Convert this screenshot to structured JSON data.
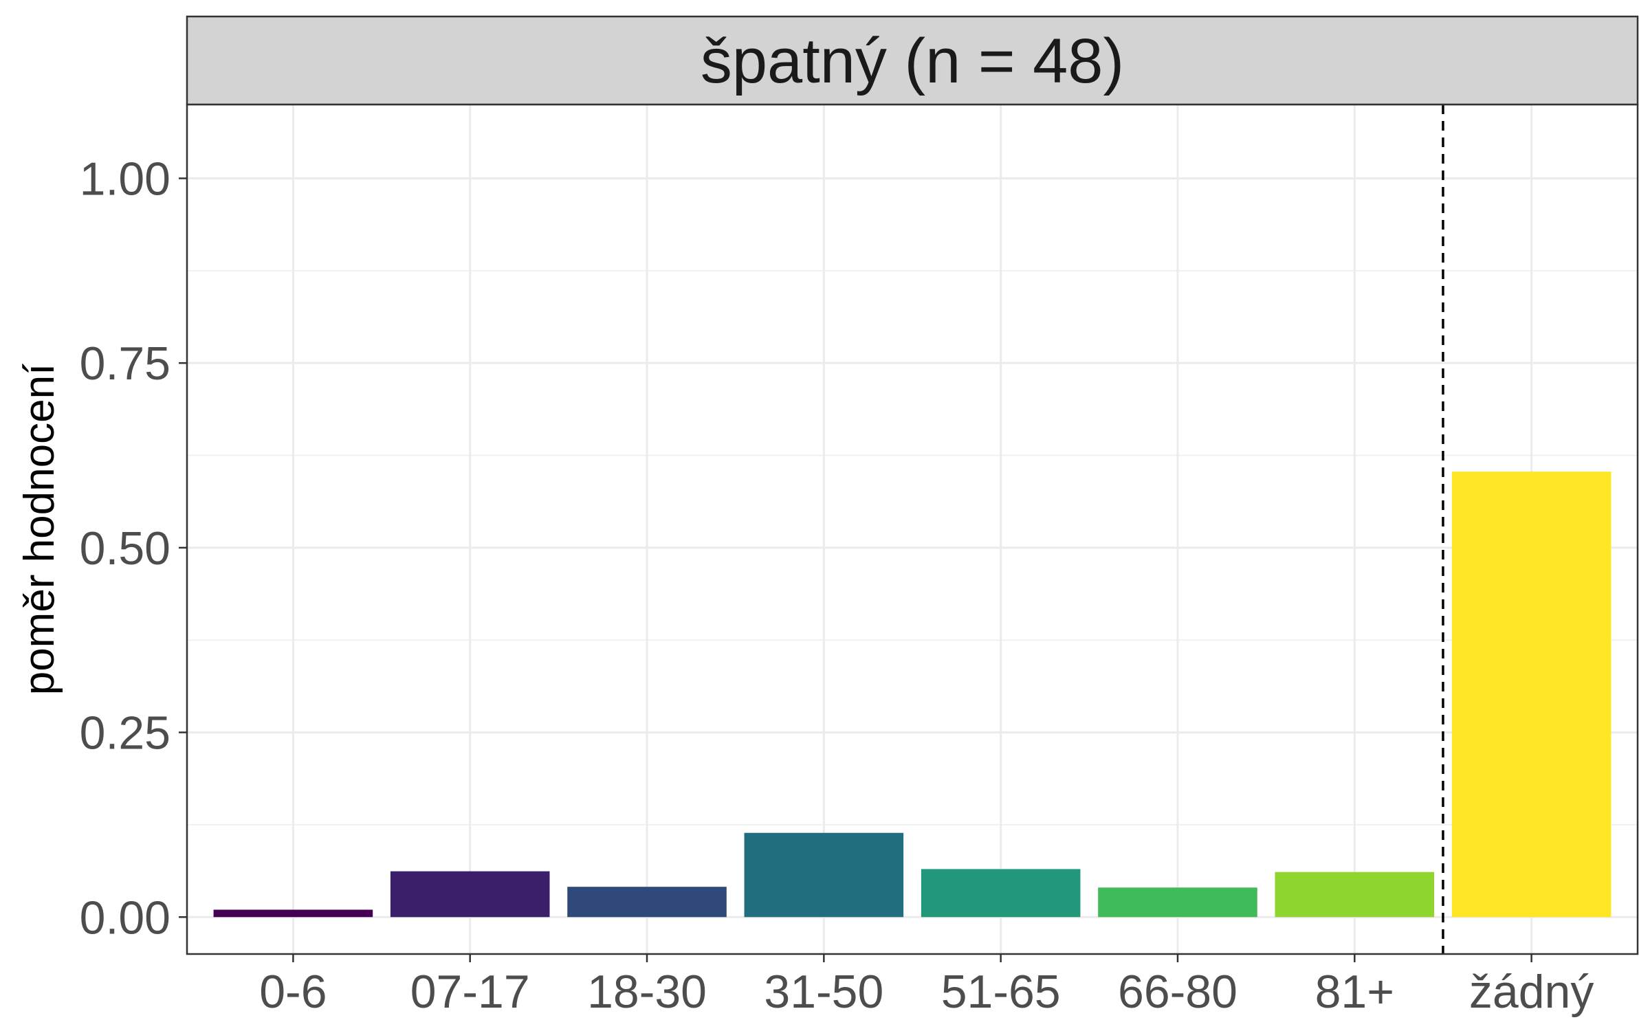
{
  "chart_data": {
    "type": "bar",
    "facet_title": "špatný (n = 48)",
    "xlabel": "",
    "ylabel": "poměr hodnocení",
    "categories": [
      "0-6",
      "07-17",
      "18-30",
      "31-50",
      "51-65",
      "66-80",
      "81+",
      "žádný"
    ],
    "values": [
      0.01,
      0.062,
      0.041,
      0.114,
      0.065,
      0.04,
      0.061,
      0.603
    ],
    "colors": [
      "#440154",
      "#3b1f6a",
      "#2f4a7a",
      "#216f7e",
      "#22987a",
      "#41bb5a",
      "#8ed62e",
      "#fde725"
    ],
    "ylim": [
      -0.05,
      1.1
    ],
    "yticks": [
      0.0,
      0.25,
      0.5,
      0.75,
      1.0
    ],
    "ytick_labels": [
      "0.00",
      "0.25",
      "0.50",
      "0.75",
      "1.00"
    ],
    "reference_line": {
      "between_categories": [
        "81+",
        "žádný"
      ],
      "style": "dashed"
    },
    "grid": true,
    "theme": "bw"
  }
}
